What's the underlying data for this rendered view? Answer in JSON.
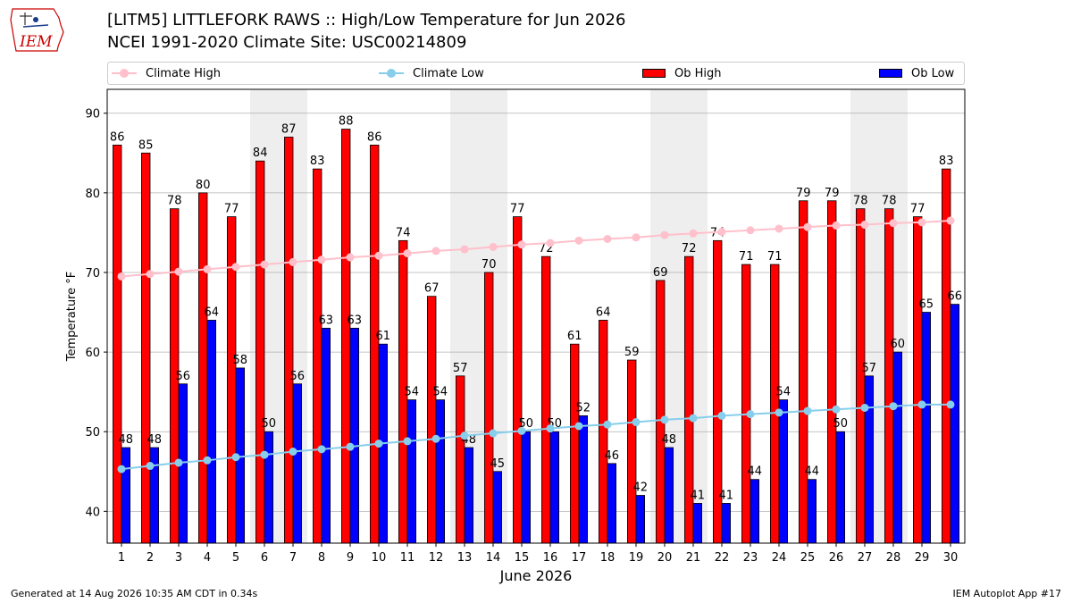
{
  "title": {
    "line1": "[LITM5] LITTLEFORK RAWS :: High/Low Temperature for Jun 2026",
    "line2": "NCEI 1991-2020 Climate Site: USC00214809"
  },
  "logo": {
    "text": "IEM",
    "color": "#cc0000"
  },
  "legend": [
    {
      "label": "Climate High",
      "kind": "line",
      "color": "#ffc0cb"
    },
    {
      "label": "Climate Low",
      "kind": "line",
      "color": "#87ceeb"
    },
    {
      "label": "Ob High",
      "kind": "bar",
      "color": "#ff0000"
    },
    {
      "label": "Ob Low",
      "kind": "bar",
      "color": "#0000ff"
    }
  ],
  "chart_data": {
    "type": "bar",
    "xlabel": "June 2026",
    "ylabel": "Temperature °F",
    "ylim": [
      36,
      93
    ],
    "yticks": [
      40,
      50,
      60,
      70,
      80,
      90
    ],
    "grid": true,
    "legend_position": "top",
    "categories": [
      "1",
      "2",
      "3",
      "4",
      "5",
      "6",
      "7",
      "8",
      "9",
      "10",
      "11",
      "12",
      "13",
      "14",
      "15",
      "16",
      "17",
      "18",
      "19",
      "20",
      "21",
      "22",
      "23",
      "24",
      "25",
      "26",
      "27",
      "28",
      "29",
      "30"
    ],
    "weekend_shading_days": [
      6,
      7,
      13,
      14,
      20,
      21,
      27,
      28
    ],
    "series": [
      {
        "name": "Ob High",
        "type": "bar",
        "color": "#ff0000",
        "values": [
          86,
          85,
          78,
          80,
          77,
          84,
          87,
          83,
          88,
          86,
          74,
          67,
          57,
          70,
          77,
          72,
          61,
          64,
          59,
          69,
          72,
          74,
          71,
          71,
          79,
          79,
          78,
          78,
          77,
          83
        ]
      },
      {
        "name": "Ob Low",
        "type": "bar",
        "color": "#0000ff",
        "values": [
          48,
          48,
          56,
          64,
          58,
          50,
          56,
          63,
          63,
          61,
          54,
          54,
          48,
          45,
          50,
          50,
          52,
          46,
          42,
          48,
          41,
          41,
          44,
          54,
          44,
          50,
          57,
          60,
          65,
          66
        ]
      },
      {
        "name": "Climate High",
        "type": "line",
        "color": "#ffc0cb",
        "values": [
          69.5,
          69.8,
          70.1,
          70.4,
          70.7,
          71.0,
          71.3,
          71.6,
          71.9,
          72.1,
          72.4,
          72.7,
          72.9,
          73.2,
          73.5,
          73.7,
          74.0,
          74.2,
          74.4,
          74.7,
          74.9,
          75.1,
          75.3,
          75.5,
          75.7,
          75.9,
          76.0,
          76.2,
          76.3,
          76.5
        ]
      },
      {
        "name": "Climate Low",
        "type": "line",
        "color": "#87ceeb",
        "values": [
          45.3,
          45.7,
          46.1,
          46.4,
          46.8,
          47.1,
          47.5,
          47.8,
          48.1,
          48.5,
          48.8,
          49.1,
          49.5,
          49.8,
          50.1,
          50.4,
          50.7,
          50.9,
          51.2,
          51.5,
          51.7,
          52.0,
          52.2,
          52.4,
          52.6,
          52.8,
          53.0,
          53.2,
          53.4,
          53.4
        ]
      }
    ]
  },
  "footer": {
    "generated": "Generated at 14 Aug 2026 10:35 AM CDT in 0.34s",
    "app": "IEM Autoplot App #17"
  }
}
